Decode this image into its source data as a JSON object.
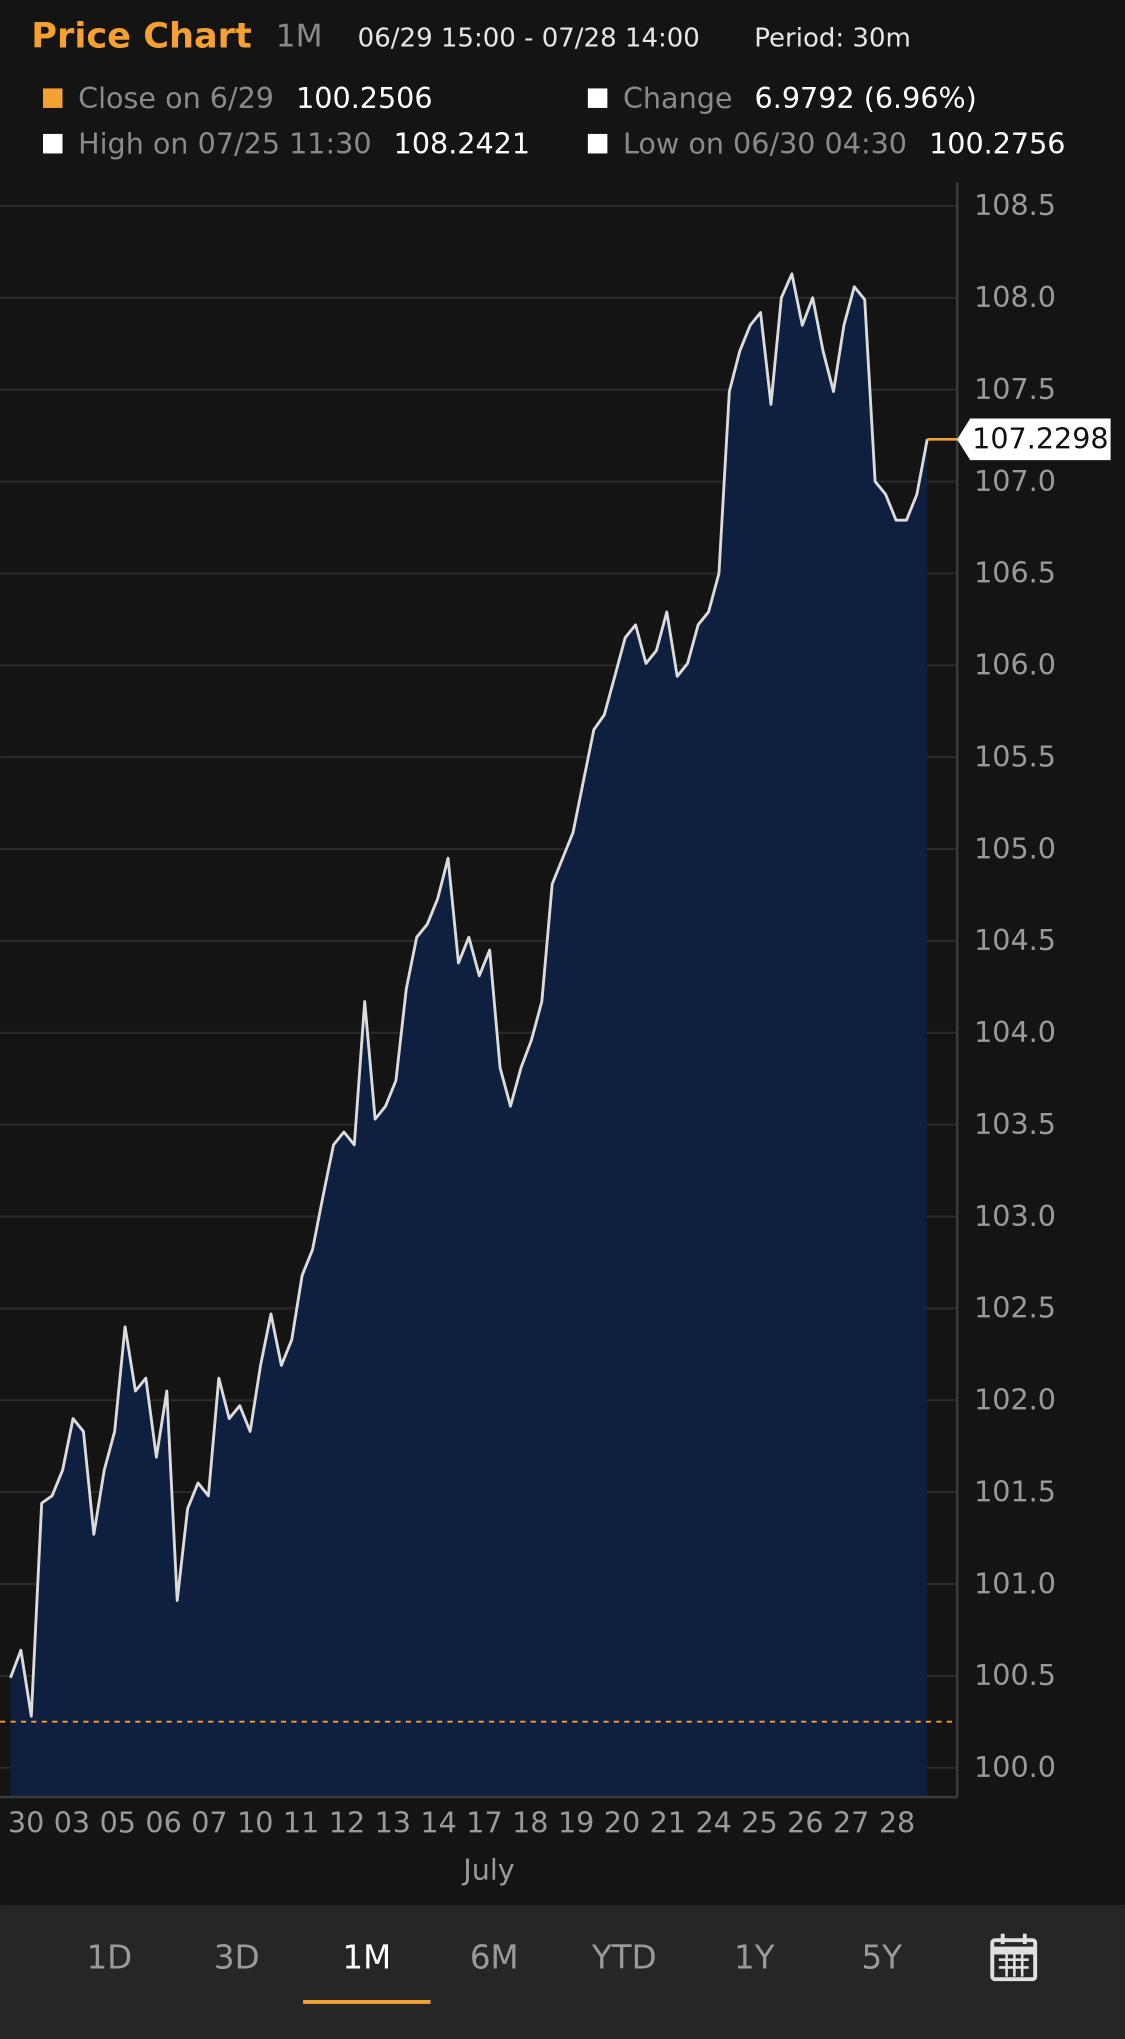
{
  "header": {
    "title": "Price Chart",
    "range": "1M",
    "period_span": "06/29 15:00 - 07/28 14:00",
    "period": "Period: 30m",
    "stats": [
      {
        "label": "Close on 6/29",
        "value": "100.2506",
        "color": "#f5a033"
      },
      {
        "label": "Change",
        "value": "6.9792 (6.96%)",
        "color": "#ffffff"
      },
      {
        "label": "High on 07/25 11:30",
        "value": "108.2421",
        "color": "#ffffff"
      },
      {
        "label": "Low on 06/30 04:30",
        "value": "100.2756",
        "color": "#ffffff"
      }
    ]
  },
  "chart_data": {
    "type": "area",
    "x_label": "July",
    "day_labels": [
      "30",
      "03",
      "05",
      "06",
      "07",
      "10",
      "11",
      "12",
      "13",
      "14",
      "17",
      "18",
      "19",
      "20",
      "21",
      "24",
      "25",
      "26",
      "27",
      "28"
    ],
    "series": [
      {
        "name": "Price",
        "color": "#dcdcdc",
        "fill": "#0e1f40",
        "values": [
          100.49,
          100.64,
          100.28,
          101.44,
          101.48,
          101.62,
          101.9,
          101.83,
          101.27,
          101.62,
          101.83,
          102.4,
          102.05,
          102.12,
          101.69,
          102.05,
          100.91,
          101.41,
          101.55,
          101.48,
          102.12,
          101.9,
          101.97,
          101.83,
          102.19,
          102.47,
          102.19,
          102.33,
          102.68,
          102.82,
          103.11,
          103.39,
          103.46,
          103.39,
          104.17,
          103.53,
          103.6,
          103.74,
          104.24,
          104.52,
          104.59,
          104.73,
          104.95,
          104.38,
          104.52,
          104.31,
          104.45,
          103.81,
          103.6,
          103.81,
          103.96,
          104.17,
          104.81,
          104.95,
          105.09,
          105.37,
          105.65,
          105.73,
          105.94,
          106.15,
          106.22,
          106.01,
          106.08,
          106.29,
          105.94,
          106.01,
          106.22,
          106.29,
          106.5,
          107.49,
          107.71,
          107.85,
          107.92,
          107.42,
          108.0,
          108.13,
          107.85,
          108.0,
          107.71,
          107.49,
          107.85,
          108.06,
          107.99,
          107.0,
          106.93,
          106.79,
          106.79,
          106.93,
          107.2298
        ]
      }
    ],
    "reference_line": 100.2506,
    "reference_color": "#f5a033",
    "ylim": [
      99.84,
      108.63
    ],
    "yticks": [
      {
        "value": 100,
        "label": "100.0"
      },
      100.5,
      {
        "value": 101,
        "label": "101.0"
      },
      101.5,
      {
        "value": 102,
        "label": "102.0"
      },
      102.5,
      {
        "value": 103,
        "label": "103.0"
      },
      103.5,
      {
        "value": 104,
        "label": "104.0"
      },
      104.5,
      {
        "value": 105,
        "label": "105.0"
      },
      105.5,
      {
        "value": 106,
        "label": "106.0"
      },
      106.5,
      {
        "value": 107,
        "label": "107.0"
      },
      107.5,
      {
        "value": 108,
        "label": "108.0"
      },
      108.5
    ],
    "grid": true
  },
  "tabs": [
    "1D",
    "3D",
    "1M",
    "6M",
    "YTD",
    "1Y",
    "5Y"
  ],
  "active_tab": "1M"
}
